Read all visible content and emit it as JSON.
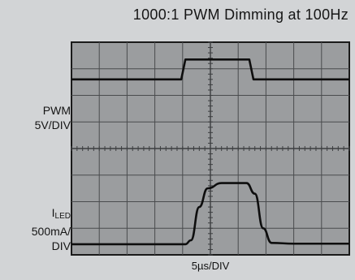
{
  "title": "1000:1 PWM Dimming at 100Hz",
  "chart_data": {
    "type": "line",
    "title": "1000:1 PWM Dimming at 100Hz",
    "xlabel": "5µs/DIV",
    "grid": true,
    "divisions": {
      "x": 10,
      "y": 8
    },
    "series": [
      {
        "name": "PWM",
        "scale_label": "5V/DIV",
        "points_div": [
          [
            0,
            6.6
          ],
          [
            3.95,
            6.6
          ],
          [
            4.1,
            7.35
          ],
          [
            6.4,
            7.35
          ],
          [
            6.55,
            6.6
          ],
          [
            10,
            6.6
          ]
        ]
      },
      {
        "name": "I_LED",
        "scale_label": "500mA/DIV",
        "points_div": [
          [
            0,
            0.4
          ],
          [
            4.1,
            0.4
          ],
          [
            4.3,
            0.55
          ],
          [
            4.6,
            1.8
          ],
          [
            4.9,
            2.5
          ],
          [
            5.4,
            2.7
          ],
          [
            6.3,
            2.7
          ],
          [
            6.6,
            2.3
          ],
          [
            6.9,
            1.0
          ],
          [
            7.2,
            0.45
          ],
          [
            8.0,
            0.42
          ],
          [
            10,
            0.42
          ]
        ]
      }
    ]
  },
  "labels": {
    "pwm_name": "PWM",
    "pwm_scale": "5V/DIV",
    "iled_main": "I",
    "iled_sub": "LED",
    "iled_scale_1": "500mA/",
    "iled_scale_2": "DIV",
    "x_scale": "5µs/DIV"
  }
}
